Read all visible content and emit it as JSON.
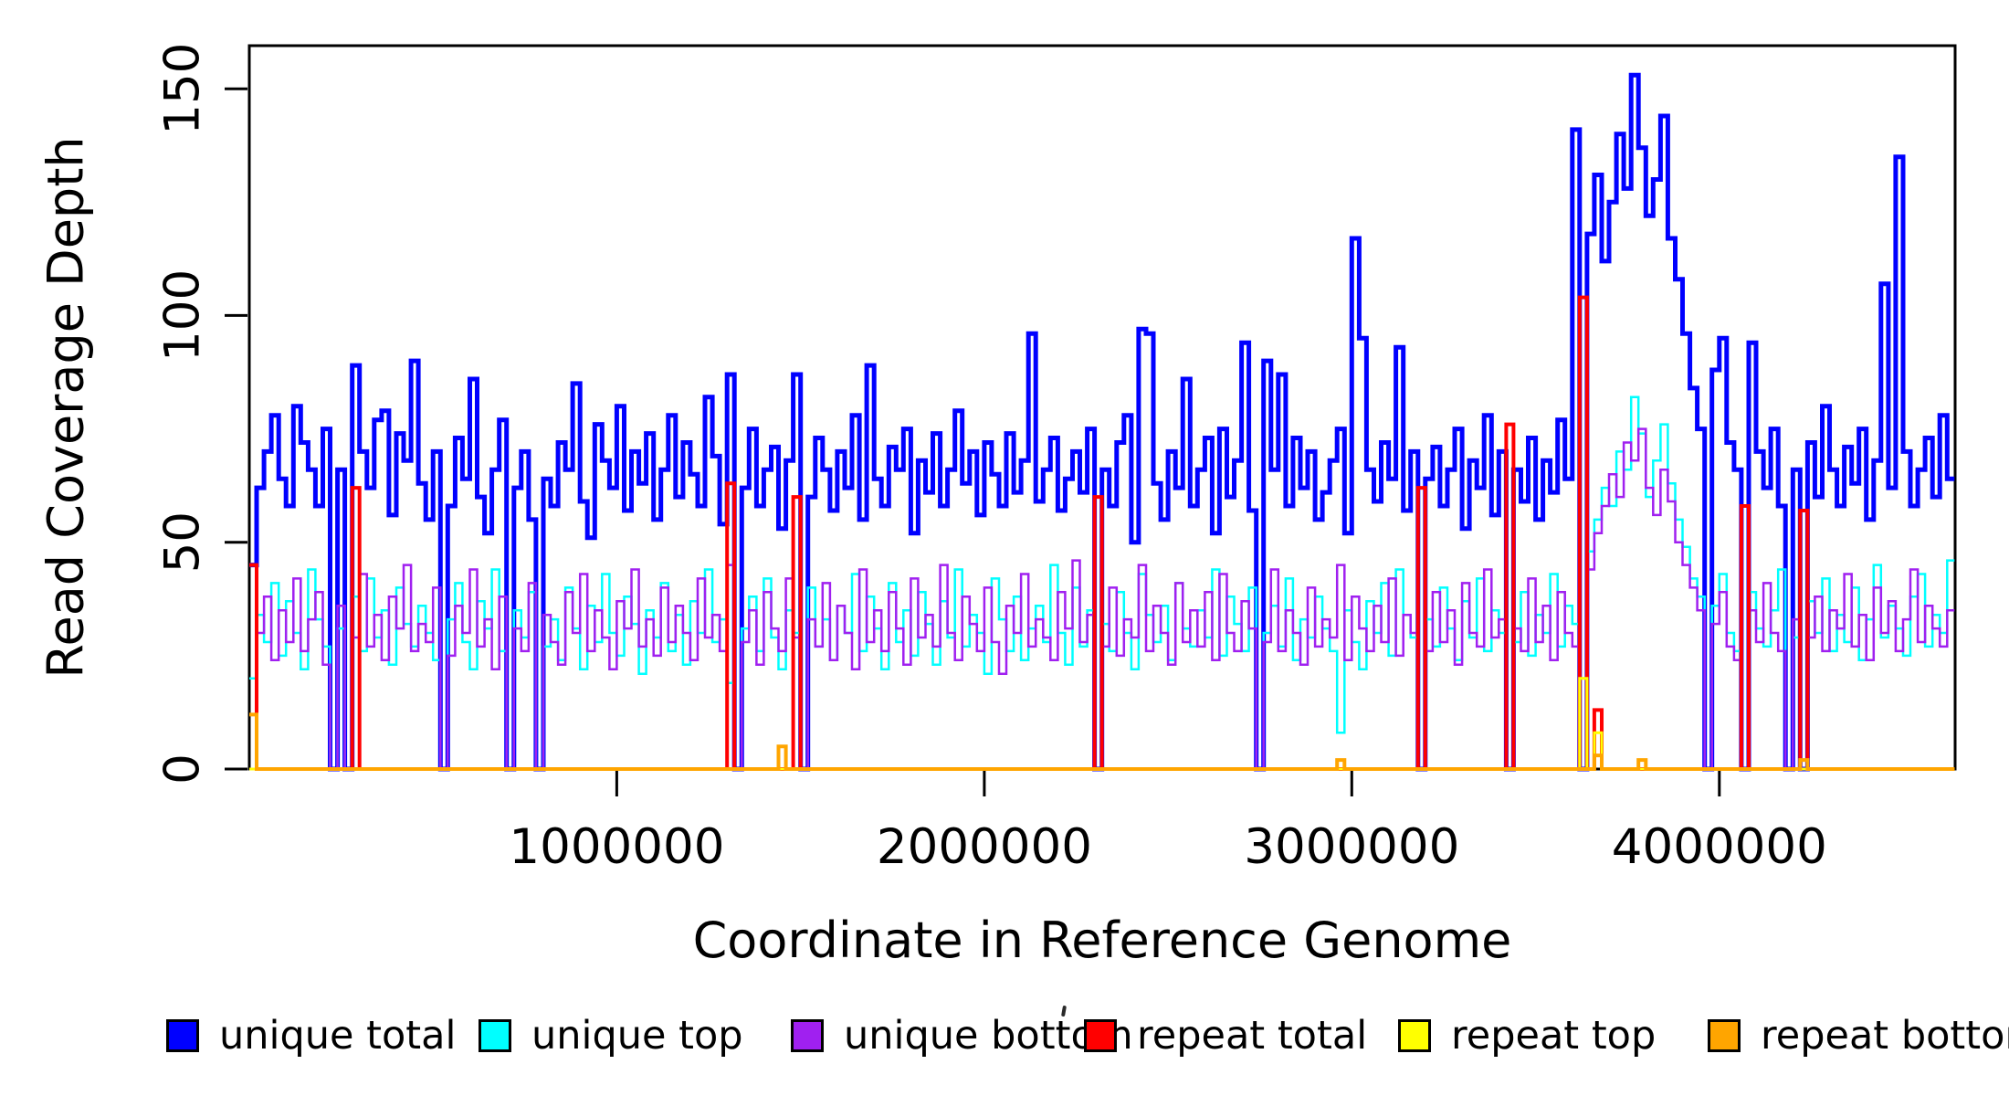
{
  "chart_data": {
    "type": "line",
    "style": "step",
    "xlabel": "Coordinate in Reference Genome",
    "ylabel": "Read Coverage Depth",
    "xlim": [
      0,
      4641652
    ],
    "ylim": [
      0,
      159.5
    ],
    "x_bin_bp": 20000,
    "n_bins": 232,
    "grid": false,
    "x_ticks": [
      {
        "value": 1000000,
        "label": "1000000"
      },
      {
        "value": 2000000,
        "label": "2000000"
      },
      {
        "value": 3000000,
        "label": "3000000"
      },
      {
        "value": 4000000,
        "label": "4000000"
      }
    ],
    "y_ticks": [
      {
        "value": 0,
        "label": "0"
      },
      {
        "value": 50,
        "label": "50"
      },
      {
        "value": 100,
        "label": "100"
      },
      {
        "value": 150,
        "label": "150"
      }
    ],
    "series": [
      {
        "name": "unique total",
        "color": "#0000FF",
        "line_width": 5,
        "values": [
          45,
          62,
          70,
          78,
          64,
          58,
          80,
          72,
          66,
          58,
          75,
          0,
          66,
          0,
          89,
          70,
          62,
          77,
          79,
          56,
          74,
          68,
          90,
          63,
          55,
          70,
          0,
          58,
          73,
          64,
          86,
          60,
          52,
          66,
          77,
          0,
          62,
          70,
          55,
          0,
          64,
          58,
          72,
          66,
          85,
          59,
          51,
          76,
          68,
          62,
          80,
          57,
          70,
          63,
          74,
          55,
          66,
          78,
          60,
          72,
          65,
          58,
          82,
          69,
          54,
          87,
          0,
          62,
          75,
          58,
          66,
          71,
          53,
          68,
          87,
          0,
          60,
          73,
          66,
          57,
          70,
          62,
          78,
          55,
          89,
          64,
          58,
          71,
          66,
          75,
          52,
          68,
          61,
          74,
          58,
          66,
          79,
          63,
          70,
          56,
          72,
          65,
          58,
          74,
          61,
          68,
          96,
          59,
          66,
          73,
          57,
          64,
          70,
          61,
          75,
          0,
          66,
          58,
          72,
          78,
          50,
          97,
          96,
          63,
          55,
          70,
          62,
          86,
          58,
          66,
          73,
          52,
          75,
          60,
          68,
          94,
          57,
          0,
          90,
          66,
          87,
          58,
          73,
          62,
          70,
          55,
          61,
          68,
          75,
          52,
          117,
          95,
          66,
          59,
          72,
          64,
          93,
          57,
          70,
          0,
          64,
          71,
          58,
          66,
          75,
          53,
          68,
          62,
          78,
          56,
          70,
          0,
          66,
          59,
          73,
          55,
          68,
          61,
          77,
          64,
          141,
          0,
          118,
          131,
          112,
          125,
          140,
          128,
          153,
          137,
          122,
          130,
          144,
          117,
          108,
          96,
          84,
          75,
          0,
          88,
          95,
          72,
          66,
          0,
          94,
          70,
          62,
          75,
          58,
          0,
          66,
          0,
          72,
          60,
          80,
          66,
          58,
          71,
          63,
          75,
          55,
          68,
          107,
          62,
          135,
          70,
          58,
          66,
          73,
          60,
          78,
          64
        ]
      },
      {
        "name": "unique top",
        "color": "#00FFFF",
        "line_width": 2.5,
        "values": [
          20,
          34,
          28,
          41,
          25,
          37,
          30,
          22,
          44,
          33,
          27,
          0,
          31,
          0,
          38,
          26,
          42,
          29,
          35,
          23,
          40,
          32,
          27,
          36,
          30,
          24,
          0,
          33,
          41,
          28,
          22,
          37,
          31,
          44,
          26,
          0,
          35,
          29,
          39,
          0,
          27,
          33,
          24,
          40,
          31,
          22,
          36,
          28,
          43,
          30,
          25,
          38,
          32,
          21,
          35,
          29,
          41,
          26,
          34,
          23,
          37,
          30,
          44,
          28,
          33,
          19,
          0,
          31,
          38,
          26,
          42,
          29,
          22,
          35,
          30,
          0,
          40,
          27,
          33,
          24,
          36,
          30,
          43,
          26,
          38,
          31,
          22,
          41,
          28,
          35,
          25,
          39,
          32,
          23,
          37,
          29,
          44,
          27,
          34,
          30,
          21,
          42,
          33,
          26,
          38,
          24,
          31,
          36,
          28,
          45,
          30,
          23,
          40,
          27,
          35,
          0,
          32,
          26,
          39,
          30,
          22,
          43,
          34,
          28,
          36,
          24,
          41,
          31,
          27,
          35,
          29,
          44,
          25,
          38,
          32,
          26,
          40,
          0,
          30,
          36,
          27,
          42,
          24,
          33,
          29,
          38,
          31,
          26,
          8,
          35,
          28,
          22,
          37,
          30,
          41,
          25,
          44,
          34,
          29,
          0,
          33,
          27,
          40,
          31,
          24,
          37,
          29,
          42,
          26,
          35,
          30,
          0,
          28,
          39,
          25,
          34,
          30,
          43,
          27,
          36,
          32,
          0,
          48,
          55,
          62,
          58,
          70,
          66,
          82,
          74,
          60,
          68,
          76,
          63,
          55,
          49,
          42,
          38,
          0,
          36,
          43,
          30,
          26,
          0,
          39,
          31,
          27,
          35,
          44,
          0,
          29,
          0,
          37,
          30,
          42,
          26,
          34,
          28,
          40,
          24,
          33,
          45,
          29,
          36,
          31,
          25,
          38,
          43,
          27,
          34,
          30,
          46
        ]
      },
      {
        "name": "unique bottom",
        "color": "#A020F0",
        "line_width": 2.5,
        "values": [
          45,
          30,
          38,
          24,
          35,
          28,
          42,
          26,
          33,
          39,
          23,
          0,
          36,
          0,
          29,
          43,
          27,
          34,
          24,
          38,
          31,
          45,
          26,
          32,
          28,
          40,
          0,
          25,
          36,
          30,
          44,
          27,
          33,
          22,
          38,
          0,
          31,
          26,
          41,
          0,
          34,
          28,
          23,
          39,
          30,
          43,
          26,
          35,
          29,
          22,
          37,
          31,
          44,
          27,
          33,
          25,
          40,
          28,
          36,
          30,
          24,
          42,
          29,
          34,
          26,
          45,
          0,
          28,
          35,
          23,
          39,
          31,
          26,
          42,
          29,
          0,
          33,
          27,
          41,
          24,
          36,
          30,
          22,
          44,
          28,
          35,
          26,
          39,
          31,
          23,
          42,
          29,
          34,
          27,
          45,
          30,
          24,
          38,
          32,
          26,
          40,
          28,
          21,
          36,
          30,
          43,
          27,
          33,
          29,
          24,
          39,
          31,
          46,
          28,
          34,
          0,
          27,
          40,
          25,
          33,
          29,
          45,
          26,
          36,
          30,
          23,
          41,
          28,
          35,
          27,
          39,
          24,
          43,
          30,
          26,
          37,
          31,
          0,
          28,
          44,
          26,
          35,
          30,
          23,
          40,
          27,
          33,
          29,
          45,
          24,
          38,
          31,
          26,
          36,
          28,
          42,
          25,
          34,
          30,
          0,
          26,
          39,
          28,
          35,
          23,
          41,
          30,
          27,
          44,
          29,
          33,
          0,
          31,
          26,
          42,
          28,
          36,
          24,
          39,
          30,
          27,
          0,
          44,
          52,
          58,
          65,
          60,
          72,
          68,
          75,
          62,
          56,
          66,
          59,
          50,
          45,
          40,
          35,
          0,
          32,
          39,
          27,
          24,
          0,
          35,
          28,
          41,
          30,
          26,
          0,
          33,
          0,
          29,
          38,
          26,
          35,
          31,
          43,
          27,
          34,
          24,
          40,
          30,
          37,
          26,
          33,
          44,
          28,
          36,
          31,
          27,
          35
        ]
      },
      {
        "name": "repeat total",
        "color": "#FF0000",
        "line_width": 4,
        "baseline": 0,
        "spikes": {
          "0": 45,
          "14": 62,
          "65": 63,
          "74": 60,
          "115": 60,
          "159": 62,
          "171": 76,
          "181": 104,
          "183": 13,
          "203": 58,
          "211": 57
        }
      },
      {
        "name": "repeat top",
        "color": "#FFFF00",
        "line_width": 3,
        "baseline": 0,
        "spikes": {
          "181": 20,
          "183": 8
        }
      },
      {
        "name": "repeat bottom",
        "color": "#FFA500",
        "line_width": 4,
        "baseline": 0,
        "spikes": {
          "0": 12,
          "72": 5,
          "148": 2,
          "183": 3,
          "189": 2,
          "211": 2
        }
      }
    ],
    "legend": {
      "position": "bottom",
      "items": [
        {
          "label": "unique total",
          "color": "#0000FF"
        },
        {
          "label": "unique top",
          "color": "#00FFFF"
        },
        {
          "label": "unique bottom",
          "color": "#A020F0"
        },
        {
          "label": "repeat total",
          "color": "#FF0000"
        },
        {
          "label": "repeat top",
          "color": "#FFFF00"
        },
        {
          "label": "repeat bottom",
          "color": "#FFA500"
        }
      ]
    }
  }
}
